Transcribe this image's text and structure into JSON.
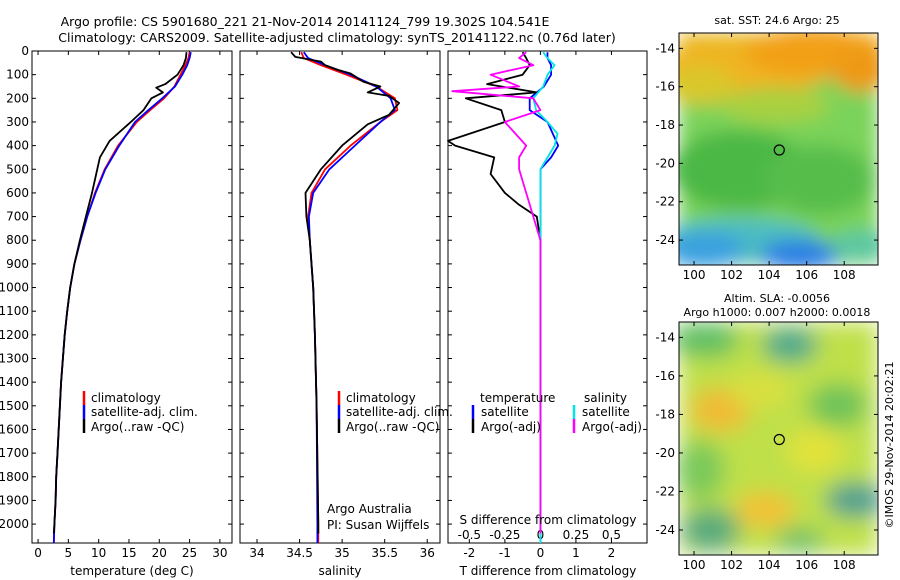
{
  "header": {
    "line1": "Argo profile: CS 5901680_221 21-Nov-2014 20141124_799 19.302S 104.541E",
    "line2": "Climatology: CARS2009. Satellite-adjusted climatology: synTS_20141122.nc (0.76d later)"
  },
  "colors": {
    "climatology": "#ff0000",
    "satellite": "#0000ff",
    "argo": "#000000",
    "salinity_satellite": "#00e5e5",
    "salinity_argo": "#ff00ff",
    "marker": "#000000"
  },
  "chart_data": [
    {
      "id": "temperature",
      "type": "line",
      "xlabel": "temperature (deg C)",
      "xlim": [
        -1,
        32
      ],
      "xticks": [
        0,
        5,
        10,
        15,
        20,
        25,
        30
      ],
      "ylim": [
        0,
        2080
      ],
      "yticks": [
        0,
        100,
        200,
        300,
        400,
        500,
        600,
        700,
        800,
        900,
        1000,
        1100,
        1200,
        1300,
        1400,
        1500,
        1600,
        1700,
        1800,
        1900,
        2000
      ],
      "legend": [
        "climatology",
        "satellite-adj. clim.",
        "Argo(..raw -QC)"
      ],
      "series": [
        {
          "name": "climatology",
          "color": "red",
          "points": [
            [
              25,
              5
            ],
            [
              24.8,
              30
            ],
            [
              24.3,
              60
            ],
            [
              23.5,
              100
            ],
            [
              22.5,
              150
            ],
            [
              20.8,
              200
            ],
            [
              18.5,
              250
            ],
            [
              16.3,
              300
            ],
            [
              13.2,
              400
            ],
            [
              11,
              500
            ],
            [
              9.4,
              600
            ],
            [
              8.1,
              700
            ],
            [
              7,
              800
            ],
            [
              6,
              900
            ],
            [
              5.3,
              1000
            ],
            [
              4.8,
              1100
            ],
            [
              4.4,
              1200
            ],
            [
              4.1,
              1300
            ],
            [
              3.8,
              1400
            ],
            [
              3.6,
              1500
            ],
            [
              3.4,
              1600
            ],
            [
              3.2,
              1700
            ],
            [
              3,
              1800
            ],
            [
              2.9,
              1900
            ],
            [
              2.7,
              2000
            ],
            [
              2.6,
              2080
            ]
          ]
        },
        {
          "name": "satellite-adj. clim.",
          "color": "blue",
          "points": [
            [
              25.2,
              5
            ],
            [
              25,
              30
            ],
            [
              24.6,
              60
            ],
            [
              23.8,
              100
            ],
            [
              22.6,
              150
            ],
            [
              20.5,
              200
            ],
            [
              18.2,
              250
            ],
            [
              16,
              300
            ],
            [
              13.4,
              400
            ],
            [
              11.1,
              500
            ],
            [
              9.5,
              600
            ],
            [
              8.1,
              700
            ],
            [
              7,
              800
            ],
            [
              6,
              900
            ],
            [
              5.3,
              1000
            ],
            [
              4.8,
              1100
            ],
            [
              4.4,
              1200
            ],
            [
              4.1,
              1300
            ],
            [
              3.8,
              1400
            ],
            [
              3.6,
              1500
            ],
            [
              3.4,
              1600
            ],
            [
              3.2,
              1700
            ],
            [
              3,
              1800
            ],
            [
              2.9,
              1900
            ],
            [
              2.7,
              2000
            ],
            [
              2.6,
              2080
            ]
          ]
        },
        {
          "name": "Argo(..raw -QC)",
          "color": "black",
          "points": [
            [
              24.5,
              5
            ],
            [
              24.4,
              30
            ],
            [
              24,
              60
            ],
            [
              23,
              100
            ],
            [
              21,
              140
            ],
            [
              19.5,
              155
            ],
            [
              20.6,
              175
            ],
            [
              18.7,
              200
            ],
            [
              17.4,
              250
            ],
            [
              15.3,
              300
            ],
            [
              11.8,
              380
            ],
            [
              10.2,
              450
            ],
            [
              9.6,
              520
            ],
            [
              8.9,
              600
            ],
            [
              7.9,
              700
            ],
            [
              6.9,
              800
            ],
            [
              6,
              900
            ],
            [
              5.3,
              1000
            ],
            [
              4.8,
              1100
            ],
            [
              4.4,
              1200
            ],
            [
              4.1,
              1300
            ],
            [
              3.8,
              1400
            ],
            [
              3.6,
              1500
            ],
            [
              3.4,
              1600
            ],
            [
              3.2,
              1700
            ],
            [
              3,
              1800
            ],
            [
              2.9,
              1900
            ],
            [
              2.7,
              2000
            ],
            [
              2.6,
              2040
            ]
          ]
        }
      ]
    },
    {
      "id": "salinity",
      "type": "line",
      "xlabel": "salinity",
      "xlim": [
        33.8,
        36.15
      ],
      "xticks": [
        34,
        34.5,
        35,
        35.5,
        36
      ],
      "ylim": [
        0,
        2080
      ],
      "legend": [
        "climatology",
        "satellite-adj. clim.",
        "Argo(..raw -QC)"
      ],
      "annotation": [
        "Argo Australia",
        "PI: Susan Wijffels"
      ],
      "series": [
        {
          "name": "climatology",
          "color": "red",
          "points": [
            [
              34.52,
              5
            ],
            [
              34.55,
              30
            ],
            [
              34.75,
              60
            ],
            [
              35.05,
              100
            ],
            [
              35.4,
              150
            ],
            [
              35.62,
              200
            ],
            [
              35.65,
              250
            ],
            [
              35.45,
              300
            ],
            [
              35.1,
              400
            ],
            [
              34.8,
              500
            ],
            [
              34.64,
              600
            ],
            [
              34.6,
              700
            ],
            [
              34.62,
              800
            ],
            [
              34.64,
              900
            ],
            [
              34.66,
              1000
            ],
            [
              34.68,
              1200
            ],
            [
              34.7,
              1500
            ],
            [
              34.72,
              2000
            ],
            [
              34.72,
              2080
            ]
          ]
        },
        {
          "name": "satellite-adj. clim.",
          "color": "blue",
          "points": [
            [
              34.55,
              5
            ],
            [
              34.6,
              30
            ],
            [
              34.8,
              60
            ],
            [
              35.1,
              100
            ],
            [
              35.4,
              150
            ],
            [
              35.57,
              200
            ],
            [
              35.62,
              250
            ],
            [
              35.45,
              300
            ],
            [
              35.15,
              400
            ],
            [
              34.85,
              500
            ],
            [
              34.66,
              600
            ],
            [
              34.61,
              700
            ],
            [
              34.62,
              800
            ],
            [
              34.64,
              900
            ],
            [
              34.66,
              1000
            ],
            [
              34.68,
              1200
            ],
            [
              34.7,
              1500
            ],
            [
              34.71,
              2000
            ],
            [
              34.71,
              2080
            ]
          ]
        },
        {
          "name": "Argo(..raw -QC)",
          "color": "black",
          "points": [
            [
              34.4,
              5
            ],
            [
              34.45,
              25
            ],
            [
              34.75,
              45
            ],
            [
              34.8,
              60
            ],
            [
              34.95,
              80
            ],
            [
              35.1,
              95
            ],
            [
              35.25,
              130
            ],
            [
              35.45,
              150
            ],
            [
              35.3,
              175
            ],
            [
              35.55,
              190
            ],
            [
              35.67,
              220
            ],
            [
              35.55,
              270
            ],
            [
              35.3,
              310
            ],
            [
              35,
              400
            ],
            [
              34.75,
              500
            ],
            [
              34.57,
              600
            ],
            [
              34.58,
              700
            ],
            [
              34.62,
              800
            ],
            [
              34.64,
              900
            ],
            [
              34.66,
              1000
            ],
            [
              34.68,
              1200
            ],
            [
              34.7,
              1500
            ],
            [
              34.72,
              2000
            ],
            [
              34.72,
              2040
            ]
          ]
        }
      ]
    },
    {
      "id": "differences",
      "type": "line",
      "xlabel": "T difference from climatology",
      "xlabel2": "S difference from climatology",
      "xlim": [
        -2.6,
        3
      ],
      "xticks_T": [
        -2,
        -1,
        0,
        1,
        2
      ],
      "xticks_S": [
        -0.5,
        -0.25,
        0,
        0.25,
        0.5
      ],
      "ylim": [
        0,
        2080
      ],
      "legend": {
        "temperature_title": "temperature",
        "salinity_title": "salinity",
        "entries": [
          "satellite",
          "Argo(-adj)",
          "satellite",
          "Argo(-adj)"
        ]
      },
      "series": [
        {
          "name": "T satellite",
          "color": "blue",
          "points": [
            [
              0.2,
              5
            ],
            [
              0.2,
              30
            ],
            [
              0.3,
              60
            ],
            [
              0.3,
              100
            ],
            [
              0.1,
              150
            ],
            [
              -0.3,
              200
            ],
            [
              -0.3,
              250
            ],
            [
              0.2,
              300
            ],
            [
              0.5,
              400
            ],
            [
              0.3,
              450
            ],
            [
              0,
              500
            ],
            [
              0,
              600
            ],
            [
              0,
              700
            ],
            [
              0,
              800
            ],
            [
              0,
              1000
            ],
            [
              0,
              2080
            ]
          ]
        },
        {
          "name": "T Argo(-adj)",
          "color": "black",
          "points": [
            [
              -0.5,
              5
            ],
            [
              -0.4,
              30
            ],
            [
              -0.3,
              60
            ],
            [
              -0.5,
              100
            ],
            [
              -1.5,
              140
            ],
            [
              -0.1,
              175
            ],
            [
              -2.1,
              200
            ],
            [
              -1.1,
              250
            ],
            [
              -1,
              300
            ],
            [
              -3.5,
              380
            ],
            [
              -2.4,
              400
            ],
            [
              -1.3,
              450
            ],
            [
              -1.4,
              520
            ],
            [
              -1,
              600
            ],
            [
              -0.6,
              650
            ],
            [
              -0.1,
              700
            ],
            [
              0,
              800
            ],
            [
              0,
              1000
            ],
            [
              0,
              2040
            ]
          ]
        },
        {
          "name": "S satellite",
          "color": "cyan",
          "points": [
            [
              0.02,
              5
            ],
            [
              0.05,
              30
            ],
            [
              0.1,
              60
            ],
            [
              0.05,
              100
            ],
            [
              0.02,
              150
            ],
            [
              -0.05,
              200
            ],
            [
              -0.03,
              250
            ],
            [
              0.05,
              300
            ],
            [
              0.12,
              350
            ],
            [
              0.1,
              400
            ],
            [
              0.05,
              450
            ],
            [
              0,
              500
            ],
            [
              0,
              600
            ],
            [
              0,
              800
            ],
            [
              0,
              2080
            ]
          ]
        },
        {
          "name": "S Argo(-adj)",
          "color": "magenta",
          "points": [
            [
              -0.1,
              5
            ],
            [
              -0.15,
              30
            ],
            [
              -0.05,
              60
            ],
            [
              -0.35,
              100
            ],
            [
              -0.15,
              150
            ],
            [
              -0.62,
              170
            ],
            [
              -0.05,
              200
            ],
            [
              0,
              250
            ],
            [
              -0.25,
              300
            ],
            [
              -0.1,
              400
            ],
            [
              -0.15,
              450
            ],
            [
              -0.15,
              500
            ],
            [
              -0.1,
              600
            ],
            [
              -0.05,
              700
            ],
            [
              0,
              800
            ],
            [
              0,
              1000
            ],
            [
              0,
              2040
            ]
          ]
        }
      ]
    },
    {
      "id": "sst_map",
      "type": "heatmap",
      "title": "sat. SST: 24.6  Argo: 25",
      "xlim": [
        99.2,
        109.8
      ],
      "ylim": [
        -25.3,
        -13.2
      ],
      "xticks": [
        100,
        102,
        104,
        106,
        108
      ],
      "yticks": [
        -14,
        -16,
        -18,
        -20,
        -22,
        -24
      ],
      "marker": [
        104.541,
        -19.302
      ]
    },
    {
      "id": "sla_map",
      "type": "heatmap",
      "title": "Altim. SLA: -0.0056",
      "subtitle": "Argo h1000: 0.007 h2000: 0.0018",
      "xlim": [
        99.2,
        109.8
      ],
      "ylim": [
        -25.3,
        -13.2
      ],
      "xticks": [
        100,
        102,
        104,
        106,
        108
      ],
      "yticks": [
        -14,
        -16,
        -18,
        -20,
        -22,
        -24
      ],
      "marker": [
        104.541,
        -19.302
      ]
    }
  ],
  "footer": {
    "credit": "©IMOS 29-Nov-2014 20:02:21"
  }
}
